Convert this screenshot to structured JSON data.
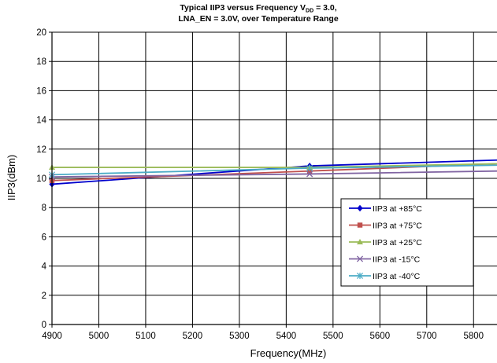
{
  "chart_data": {
    "type": "line",
    "title_line1": "Typical IIP3 versus Frequency V",
    "title_sub": "DD",
    "title_line1_tail": " = 3.0,",
    "title_line2": "LNA_EN = 3.0V, over Temperature Range",
    "xlabel": "Frequency(MHz)",
    "ylabel": "IIP3(dBm)",
    "xlim": [
      4900,
      5850
    ],
    "ylim": [
      0,
      20
    ],
    "xticks": [
      "4900",
      "5000",
      "5100",
      "5200",
      "5300",
      "5400",
      "5500",
      "5600",
      "5700",
      "5800"
    ],
    "yticks": [
      "0",
      "2",
      "4",
      "6",
      "8",
      "10",
      "12",
      "14",
      "16",
      "18",
      "20"
    ],
    "grid": true,
    "legend_position": "right",
    "series": [
      {
        "name": "IIP3 at +85°C",
        "color": "#0000CC",
        "marker": "diamond",
        "x": [
          4900,
          5450,
          5850
        ],
        "y": [
          9.6,
          10.85,
          11.25
        ]
      },
      {
        "name": "IIP3 at +75°C",
        "color": "#C0504D",
        "marker": "square",
        "x": [
          4900,
          5450,
          5850
        ],
        "y": [
          9.85,
          10.5,
          11.0
        ]
      },
      {
        "name": "IIP3 at +25°C",
        "color": "#9BBB59",
        "marker": "triangle",
        "x": [
          4900,
          5450,
          5850
        ],
        "y": [
          10.75,
          10.75,
          11.0
        ]
      },
      {
        "name": "IIP3 at -15°C",
        "color": "#8064A2",
        "marker": "x",
        "x": [
          4900,
          5450,
          5850
        ],
        "y": [
          10.1,
          10.3,
          10.5
        ]
      },
      {
        "name": "IIP3 at -40°C",
        "color": "#4BACC6",
        "marker": "star",
        "x": [
          4900,
          5450,
          5850
        ],
        "y": [
          10.25,
          10.7,
          10.9
        ]
      }
    ]
  }
}
